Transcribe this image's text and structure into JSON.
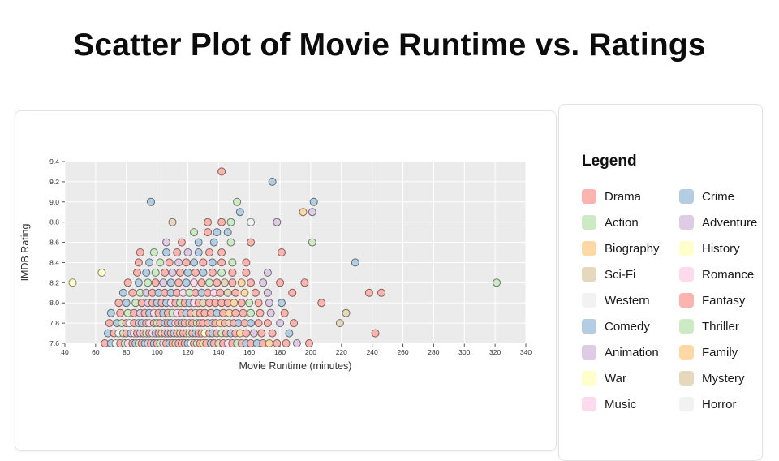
{
  "page": {
    "title": "Scatter Plot of Movie Runtime vs. Ratings"
  },
  "legend": {
    "title": "Legend"
  },
  "chart_data": {
    "type": "scatter",
    "title": "Scatter Plot of Movie Runtime vs. Ratings",
    "xlabel": "Movie Runtime (minutes)",
    "ylabel": "IMDB Rating",
    "xlim": [
      40,
      340
    ],
    "ylim": [
      7.6,
      9.4
    ],
    "xticks": [
      40,
      60,
      80,
      100,
      120,
      140,
      160,
      180,
      200,
      220,
      240,
      260,
      280,
      300,
      320,
      340
    ],
    "yticks": [
      7.6,
      7.8,
      8.0,
      8.2,
      8.4,
      8.6,
      8.8,
      9.0,
      9.2,
      9.4
    ],
    "grid": true,
    "plot_background": "#ebebeb",
    "gridline_color": "#ffffff",
    "legend_position": "right-panel",
    "genres": [
      {
        "name": "Drama",
        "color": "#fbb4ae"
      },
      {
        "name": "Crime",
        "color": "#b3cde3"
      },
      {
        "name": "Action",
        "color": "#ccebc5"
      },
      {
        "name": "Adventure",
        "color": "#decbe4"
      },
      {
        "name": "Biography",
        "color": "#fed9a6"
      },
      {
        "name": "History",
        "color": "#ffffcc"
      },
      {
        "name": "Sci-Fi",
        "color": "#e5d8bd"
      },
      {
        "name": "Romance",
        "color": "#fddaec"
      },
      {
        "name": "Western",
        "color": "#f2f2f2"
      },
      {
        "name": "Fantasy",
        "color": "#fbb4ae"
      },
      {
        "name": "Comedy",
        "color": "#b3cde3"
      },
      {
        "name": "Thriller",
        "color": "#ccebc5"
      },
      {
        "name": "Animation",
        "color": "#decbe4"
      },
      {
        "name": "Family",
        "color": "#fed9a6"
      },
      {
        "name": "War",
        "color": "#ffffcc"
      },
      {
        "name": "Mystery",
        "color": "#e5d8bd"
      },
      {
        "name": "Music",
        "color": "#fddaec"
      },
      {
        "name": "Horror",
        "color": "#f2f2f2"
      }
    ],
    "point_format": "[runtime_minutes, imdb_rating, genre_index]",
    "points": [
      [
        66,
        7.6,
        0
      ],
      [
        70,
        7.6,
        10
      ],
      [
        73,
        7.6,
        17
      ],
      [
        76,
        7.6,
        0
      ],
      [
        79,
        7.6,
        2
      ],
      [
        81,
        7.6,
        7
      ],
      [
        84,
        7.6,
        0
      ],
      [
        86,
        7.6,
        10
      ],
      [
        88,
        7.6,
        15
      ],
      [
        90,
        7.6,
        0
      ],
      [
        92,
        7.6,
        1
      ],
      [
        94,
        7.6,
        12
      ],
      [
        96,
        7.6,
        0
      ],
      [
        98,
        7.6,
        10
      ],
      [
        100,
        7.6,
        0
      ],
      [
        102,
        7.6,
        2
      ],
      [
        104,
        7.6,
        16
      ],
      [
        106,
        7.6,
        0
      ],
      [
        108,
        7.6,
        10
      ],
      [
        110,
        7.6,
        0
      ],
      [
        112,
        7.6,
        6
      ],
      [
        114,
        7.6,
        0
      ],
      [
        116,
        7.6,
        9
      ],
      [
        118,
        7.6,
        0
      ],
      [
        120,
        7.6,
        10
      ],
      [
        122,
        7.6,
        17
      ],
      [
        124,
        7.6,
        0
      ],
      [
        126,
        7.6,
        2
      ],
      [
        128,
        7.6,
        0
      ],
      [
        130,
        7.6,
        4
      ],
      [
        132,
        7.6,
        0
      ],
      [
        135,
        7.6,
        10
      ],
      [
        137,
        7.6,
        0
      ],
      [
        140,
        7.6,
        15
      ],
      [
        143,
        7.6,
        0
      ],
      [
        146,
        7.6,
        7
      ],
      [
        149,
        7.6,
        0
      ],
      [
        152,
        7.6,
        2
      ],
      [
        155,
        7.6,
        0
      ],
      [
        158,
        7.6,
        10
      ],
      [
        161,
        7.6,
        0
      ],
      [
        165,
        7.6,
        1
      ],
      [
        169,
        7.6,
        0
      ],
      [
        173,
        7.6,
        4
      ],
      [
        178,
        7.6,
        0
      ],
      [
        184,
        7.6,
        0
      ],
      [
        191,
        7.6,
        3
      ],
      [
        199,
        7.6,
        0
      ],
      [
        68,
        7.7,
        10
      ],
      [
        72,
        7.7,
        0
      ],
      [
        75,
        7.7,
        17
      ],
      [
        78,
        7.7,
        2
      ],
      [
        80,
        7.7,
        0
      ],
      [
        83,
        7.7,
        10
      ],
      [
        85,
        7.7,
        7
      ],
      [
        87,
        7.7,
        0
      ],
      [
        89,
        7.7,
        12
      ],
      [
        91,
        7.7,
        0
      ],
      [
        93,
        7.7,
        2
      ],
      [
        95,
        7.7,
        0
      ],
      [
        97,
        7.7,
        16
      ],
      [
        99,
        7.7,
        10
      ],
      [
        101,
        7.7,
        0
      ],
      [
        103,
        7.7,
        15
      ],
      [
        105,
        7.7,
        0
      ],
      [
        107,
        7.7,
        1
      ],
      [
        109,
        7.7,
        0
      ],
      [
        111,
        7.7,
        10
      ],
      [
        113,
        7.7,
        0
      ],
      [
        115,
        7.7,
        6
      ],
      [
        117,
        7.7,
        0
      ],
      [
        119,
        7.7,
        0
      ],
      [
        121,
        7.7,
        2
      ],
      [
        123,
        7.7,
        0
      ],
      [
        125,
        7.7,
        10
      ],
      [
        127,
        7.7,
        9
      ],
      [
        129,
        7.7,
        0
      ],
      [
        131,
        7.7,
        5
      ],
      [
        134,
        7.7,
        0
      ],
      [
        136,
        7.7,
        10
      ],
      [
        139,
        7.7,
        0
      ],
      [
        142,
        7.7,
        2
      ],
      [
        145,
        7.7,
        0
      ],
      [
        148,
        7.7,
        1
      ],
      [
        151,
        7.7,
        0
      ],
      [
        154,
        7.7,
        4
      ],
      [
        158,
        7.7,
        0
      ],
      [
        163,
        7.7,
        3
      ],
      [
        168,
        7.7,
        0
      ],
      [
        175,
        7.7,
        0
      ],
      [
        186,
        7.7,
        10
      ],
      [
        242,
        7.7,
        0
      ],
      [
        69,
        7.8,
        0
      ],
      [
        74,
        7.8,
        10
      ],
      [
        77,
        7.8,
        2
      ],
      [
        80,
        7.8,
        0
      ],
      [
        82,
        7.8,
        17
      ],
      [
        85,
        7.8,
        0
      ],
      [
        88,
        7.8,
        12
      ],
      [
        90,
        7.8,
        10
      ],
      [
        93,
        7.8,
        0
      ],
      [
        95,
        7.8,
        7
      ],
      [
        98,
        7.8,
        0
      ],
      [
        100,
        7.8,
        2
      ],
      [
        102,
        7.8,
        0
      ],
      [
        105,
        7.8,
        10
      ],
      [
        107,
        7.8,
        0
      ],
      [
        109,
        7.8,
        1
      ],
      [
        112,
        7.8,
        16
      ],
      [
        114,
        7.8,
        0
      ],
      [
        116,
        7.8,
        10
      ],
      [
        118,
        7.8,
        0
      ],
      [
        121,
        7.8,
        15
      ],
      [
        123,
        7.8,
        0
      ],
      [
        126,
        7.8,
        2
      ],
      [
        128,
        7.8,
        0
      ],
      [
        130,
        7.8,
        9
      ],
      [
        133,
        7.8,
        0
      ],
      [
        136,
        7.8,
        10
      ],
      [
        138,
        7.8,
        0
      ],
      [
        141,
        7.8,
        4
      ],
      [
        144,
        7.8,
        0
      ],
      [
        147,
        7.8,
        6
      ],
      [
        150,
        7.8,
        0
      ],
      [
        153,
        7.8,
        1
      ],
      [
        157,
        7.8,
        0
      ],
      [
        161,
        7.8,
        10
      ],
      [
        166,
        7.8,
        0
      ],
      [
        172,
        7.8,
        0
      ],
      [
        180,
        7.8,
        3
      ],
      [
        189,
        7.8,
        0
      ],
      [
        219,
        7.8,
        6
      ],
      [
        70,
        7.9,
        10
      ],
      [
        76,
        7.9,
        0
      ],
      [
        81,
        7.9,
        2
      ],
      [
        85,
        7.9,
        0
      ],
      [
        89,
        7.9,
        12
      ],
      [
        92,
        7.9,
        0
      ],
      [
        95,
        7.9,
        10
      ],
      [
        98,
        7.9,
        7
      ],
      [
        101,
        7.9,
        0
      ],
      [
        104,
        7.9,
        1
      ],
      [
        107,
        7.9,
        0
      ],
      [
        110,
        7.9,
        2
      ],
      [
        113,
        7.9,
        16
      ],
      [
        116,
        7.9,
        0
      ],
      [
        119,
        7.9,
        10
      ],
      [
        122,
        7.9,
        0
      ],
      [
        125,
        7.9,
        15
      ],
      [
        128,
        7.9,
        0
      ],
      [
        131,
        7.9,
        9
      ],
      [
        135,
        7.9,
        0
      ],
      [
        139,
        7.9,
        10
      ],
      [
        143,
        7.9,
        0
      ],
      [
        147,
        7.9,
        4
      ],
      [
        151,
        7.9,
        0
      ],
      [
        156,
        7.9,
        0
      ],
      [
        161,
        7.9,
        2
      ],
      [
        167,
        7.9,
        0
      ],
      [
        174,
        7.9,
        3
      ],
      [
        183,
        7.9,
        0
      ],
      [
        223,
        7.9,
        6
      ],
      [
        75,
        8.0,
        0
      ],
      [
        80,
        8.0,
        10
      ],
      [
        86,
        8.0,
        2
      ],
      [
        90,
        8.0,
        0
      ],
      [
        94,
        8.0,
        12
      ],
      [
        97,
        8.0,
        0
      ],
      [
        100,
        8.0,
        10
      ],
      [
        103,
        8.0,
        0
      ],
      [
        106,
        8.0,
        1
      ],
      [
        109,
        8.0,
        7
      ],
      [
        112,
        8.0,
        0
      ],
      [
        115,
        8.0,
        2
      ],
      [
        118,
        8.0,
        0
      ],
      [
        121,
        8.0,
        10
      ],
      [
        124,
        8.0,
        16
      ],
      [
        127,
        8.0,
        0
      ],
      [
        130,
        8.0,
        15
      ],
      [
        134,
        8.0,
        0
      ],
      [
        138,
        8.0,
        0
      ],
      [
        142,
        8.0,
        9
      ],
      [
        146,
        8.0,
        0
      ],
      [
        150,
        8.0,
        4
      ],
      [
        155,
        8.0,
        0
      ],
      [
        160,
        8.0,
        2
      ],
      [
        166,
        8.0,
        0
      ],
      [
        173,
        8.0,
        3
      ],
      [
        181,
        8.0,
        10
      ],
      [
        207,
        8.0,
        0
      ],
      [
        78,
        8.1,
        10
      ],
      [
        84,
        8.1,
        0
      ],
      [
        89,
        8.1,
        2
      ],
      [
        93,
        8.1,
        12
      ],
      [
        97,
        8.1,
        0
      ],
      [
        101,
        8.1,
        10
      ],
      [
        105,
        8.1,
        0
      ],
      [
        109,
        8.1,
        1
      ],
      [
        113,
        8.1,
        0
      ],
      [
        117,
        8.1,
        7
      ],
      [
        121,
        8.1,
        2
      ],
      [
        125,
        8.1,
        0
      ],
      [
        129,
        8.1,
        10
      ],
      [
        133,
        8.1,
        0
      ],
      [
        137,
        8.1,
        16
      ],
      [
        141,
        8.1,
        0
      ],
      [
        146,
        8.1,
        15
      ],
      [
        151,
        8.1,
        0
      ],
      [
        157,
        8.1,
        4
      ],
      [
        164,
        8.1,
        0
      ],
      [
        172,
        8.1,
        3
      ],
      [
        188,
        8.1,
        0
      ],
      [
        238,
        8.1,
        0
      ],
      [
        246,
        8.1,
        0
      ],
      [
        45,
        8.2,
        14
      ],
      [
        81,
        8.2,
        0
      ],
      [
        88,
        8.2,
        10
      ],
      [
        94,
        8.2,
        2
      ],
      [
        99,
        8.2,
        0
      ],
      [
        104,
        8.2,
        12
      ],
      [
        109,
        8.2,
        1
      ],
      [
        114,
        8.2,
        0
      ],
      [
        119,
        8.2,
        10
      ],
      [
        124,
        8.2,
        7
      ],
      [
        129,
        8.2,
        0
      ],
      [
        134,
        8.2,
        2
      ],
      [
        139,
        8.2,
        0
      ],
      [
        144,
        8.2,
        15
      ],
      [
        149,
        8.2,
        0
      ],
      [
        155,
        8.2,
        4
      ],
      [
        161,
        8.2,
        0
      ],
      [
        169,
        8.2,
        3
      ],
      [
        180,
        8.2,
        0
      ],
      [
        196,
        8.2,
        0
      ],
      [
        321,
        8.2,
        2
      ],
      [
        64,
        8.3,
        5
      ],
      [
        87,
        8.3,
        0
      ],
      [
        93,
        8.3,
        10
      ],
      [
        99,
        8.3,
        2
      ],
      [
        105,
        8.3,
        0
      ],
      [
        110,
        8.3,
        12
      ],
      [
        115,
        8.3,
        0
      ],
      [
        120,
        8.3,
        1
      ],
      [
        125,
        8.3,
        0
      ],
      [
        130,
        8.3,
        10
      ],
      [
        136,
        8.3,
        0
      ],
      [
        142,
        8.3,
        2
      ],
      [
        149,
        8.3,
        0
      ],
      [
        158,
        8.3,
        0
      ],
      [
        172,
        8.3,
        3
      ],
      [
        88,
        8.4,
        0
      ],
      [
        95,
        8.4,
        10
      ],
      [
        102,
        8.4,
        2
      ],
      [
        108,
        8.4,
        0
      ],
      [
        114,
        8.4,
        12
      ],
      [
        119,
        8.4,
        0
      ],
      [
        124,
        8.4,
        1
      ],
      [
        130,
        8.4,
        0
      ],
      [
        136,
        8.4,
        10
      ],
      [
        142,
        8.4,
        0
      ],
      [
        149,
        8.4,
        2
      ],
      [
        158,
        8.4,
        0
      ],
      [
        229,
        8.4,
        10
      ],
      [
        89,
        8.5,
        0
      ],
      [
        98,
        8.5,
        2
      ],
      [
        106,
        8.5,
        10
      ],
      [
        113,
        8.5,
        0
      ],
      [
        120,
        8.5,
        12
      ],
      [
        127,
        8.5,
        1
      ],
      [
        134,
        8.5,
        0
      ],
      [
        142,
        8.5,
        0
      ],
      [
        181,
        8.5,
        0
      ],
      [
        106,
        8.6,
        12
      ],
      [
        116,
        8.6,
        0
      ],
      [
        127,
        8.6,
        1
      ],
      [
        137,
        8.6,
        10
      ],
      [
        148,
        8.6,
        2
      ],
      [
        161,
        8.6,
        0
      ],
      [
        201,
        8.6,
        2
      ],
      [
        124,
        8.7,
        2
      ],
      [
        133,
        8.7,
        0
      ],
      [
        139,
        8.7,
        1
      ],
      [
        146,
        8.7,
        1
      ],
      [
        110,
        8.8,
        15
      ],
      [
        133,
        8.8,
        0
      ],
      [
        142,
        8.8,
        0
      ],
      [
        148,
        8.8,
        2
      ],
      [
        161,
        8.8,
        8
      ],
      [
        178,
        8.8,
        3
      ],
      [
        154,
        8.9,
        1
      ],
      [
        195,
        8.9,
        4
      ],
      [
        201,
        8.9,
        3
      ],
      [
        96,
        9.0,
        1
      ],
      [
        152,
        9.0,
        2
      ],
      [
        202,
        9.0,
        1
      ],
      [
        175,
        9.2,
        1
      ],
      [
        142,
        9.3,
        0
      ]
    ]
  }
}
